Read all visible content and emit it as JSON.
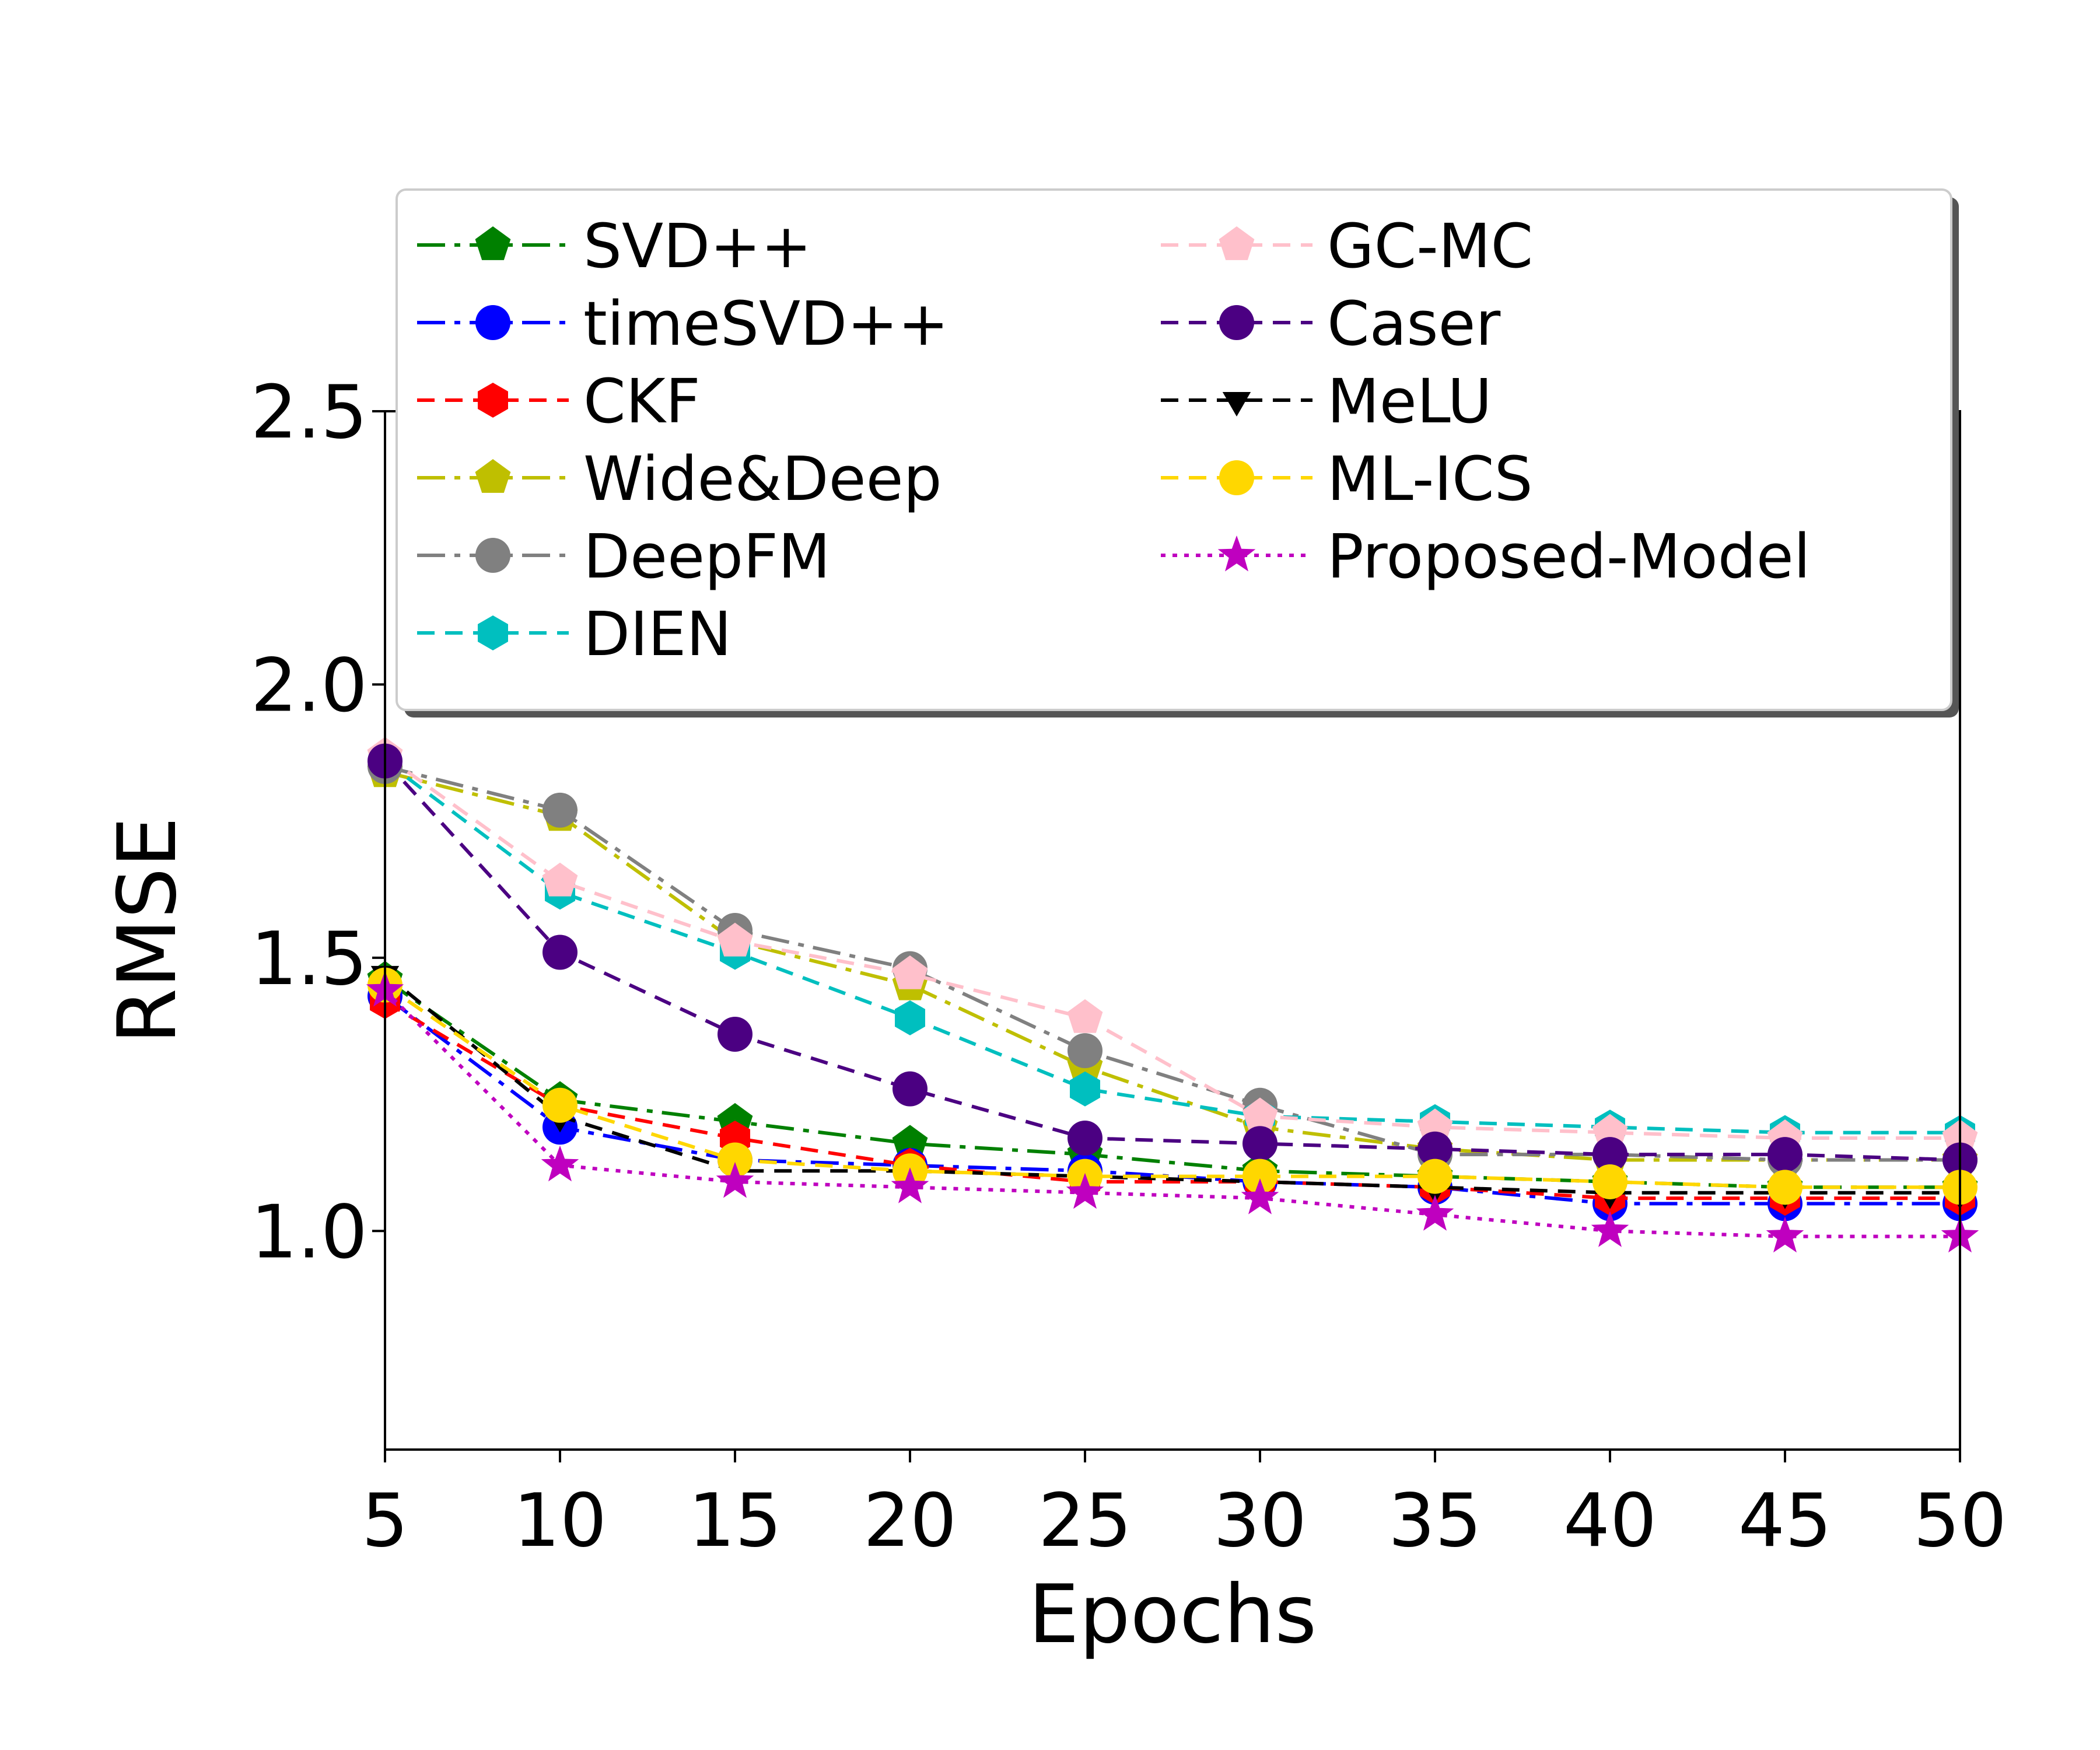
{
  "chart_data": {
    "type": "line",
    "title": "",
    "xlabel": "Epochs",
    "ylabel": "RMSE",
    "x": [
      5,
      10,
      15,
      20,
      25,
      30,
      35,
      40,
      45,
      50
    ],
    "xticks": [
      "5",
      "10",
      "15",
      "20",
      "25",
      "30",
      "35",
      "40",
      "45",
      "50"
    ],
    "yticks": [
      "1.0",
      "1.5",
      "2.0",
      "2.5"
    ],
    "ytick_values": [
      1.0,
      1.5,
      2.0,
      2.5
    ],
    "xlim": [
      5,
      50
    ],
    "ylim": [
      0.6,
      2.5
    ],
    "grid": false,
    "legend_position": "upper-center",
    "series": [
      {
        "name": "SVD++",
        "color": "#008000",
        "dash": "dashdot",
        "marker": "pentagon",
        "values": [
          1.46,
          1.24,
          1.2,
          1.16,
          1.14,
          1.11,
          1.1,
          1.09,
          1.08,
          1.08
        ]
      },
      {
        "name": "timeSVD++",
        "color": "#0000ff",
        "dash": "dashdot",
        "marker": "circle",
        "values": [
          1.43,
          1.19,
          1.13,
          1.12,
          1.11,
          1.09,
          1.08,
          1.05,
          1.05,
          1.05
        ]
      },
      {
        "name": "CKF",
        "color": "#ff0000",
        "dash": "dashed",
        "marker": "hexagon",
        "values": [
          1.42,
          1.23,
          1.17,
          1.12,
          1.09,
          1.09,
          1.08,
          1.06,
          1.06,
          1.06
        ]
      },
      {
        "name": "Wide&Deep",
        "color": "#bfbf00",
        "dash": "dashdot",
        "marker": "pentagon",
        "values": [
          1.84,
          1.76,
          1.53,
          1.45,
          1.3,
          1.19,
          1.15,
          1.13,
          1.13,
          1.13
        ]
      },
      {
        "name": "DeepFM",
        "color": "#808080",
        "dash": "dashdot",
        "marker": "circle",
        "values": [
          1.85,
          1.77,
          1.55,
          1.48,
          1.33,
          1.23,
          1.14,
          1.14,
          1.13,
          1.13
        ]
      },
      {
        "name": "DIEN",
        "color": "#00bfbf",
        "dash": "dashed",
        "marker": "hexagon",
        "values": [
          1.86,
          1.62,
          1.51,
          1.39,
          1.26,
          1.21,
          1.2,
          1.19,
          1.18,
          1.18
        ]
      },
      {
        "name": "GC-MC",
        "color": "#ffc0cb",
        "dash": "dashed",
        "marker": "pentagon",
        "values": [
          1.87,
          1.64,
          1.53,
          1.47,
          1.39,
          1.21,
          1.19,
          1.18,
          1.17,
          1.17
        ]
      },
      {
        "name": "Caser",
        "color": "#4b0082",
        "dash": "dashed",
        "marker": "circle",
        "values": [
          1.86,
          1.51,
          1.36,
          1.26,
          1.17,
          1.16,
          1.15,
          1.14,
          1.14,
          1.13
        ]
      },
      {
        "name": "MeLU",
        "color": "#000000",
        "dash": "dashed",
        "marker": "triangle-down",
        "values": [
          1.47,
          1.21,
          1.11,
          1.11,
          1.1,
          1.09,
          1.08,
          1.07,
          1.07,
          1.07
        ]
      },
      {
        "name": "ML-ICS",
        "color": "#ffd700",
        "dash": "dashed",
        "marker": "circle",
        "values": [
          1.45,
          1.23,
          1.13,
          1.11,
          1.1,
          1.1,
          1.1,
          1.09,
          1.08,
          1.08
        ]
      },
      {
        "name": "Proposed-Model",
        "color": "#bf00bf",
        "dash": "dotted",
        "marker": "star",
        "values": [
          1.44,
          1.12,
          1.09,
          1.08,
          1.07,
          1.06,
          1.03,
          1.0,
          0.99,
          0.99
        ]
      }
    ]
  }
}
